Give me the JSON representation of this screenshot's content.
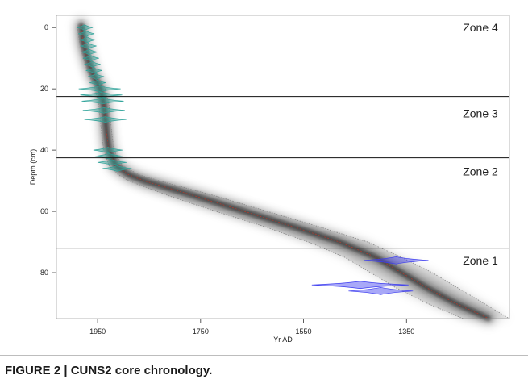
{
  "caption": "FIGURE 2 | CUNS2 core chronology.",
  "chart_data": {
    "type": "line",
    "title": "",
    "xlabel": "Yr AD",
    "ylabel": "Depth (cm)",
    "xlim": [
      2030,
      1150
    ],
    "ylim": [
      -4,
      95
    ],
    "x_reversed": true,
    "y_reversed": true,
    "x_ticks": [
      1950,
      1750,
      1550,
      1350
    ],
    "y_ticks": [
      0,
      20,
      40,
      60,
      80
    ],
    "grid": false,
    "zone_boundaries": [
      22.5,
      42.5,
      72
    ],
    "zones": [
      {
        "label": "Zone 4",
        "depth": 0
      },
      {
        "label": "Zone 3",
        "depth": 28
      },
      {
        "label": "Zone 2",
        "depth": 47
      },
      {
        "label": "Zone 1",
        "depth": 76
      }
    ],
    "age_model": {
      "depth": [
        -1,
        5,
        10,
        15,
        20,
        25,
        30,
        35,
        40,
        45,
        48,
        50,
        55,
        60,
        65,
        70,
        75,
        80,
        85,
        90,
        95
      ],
      "age": [
        1982,
        1978,
        1970,
        1960,
        1945,
        1938,
        1935,
        1932,
        1928,
        1915,
        1890,
        1860,
        1760,
        1665,
        1570,
        1480,
        1410,
        1360,
        1310,
        1255,
        1190
      ],
      "range_low": [
        1990,
        1985,
        1978,
        1968,
        1955,
        1948,
        1945,
        1942,
        1938,
        1928,
        1910,
        1890,
        1810,
        1720,
        1625,
        1540,
        1470,
        1420,
        1370,
        1310,
        1240
      ],
      "range_high": [
        1975,
        1970,
        1962,
        1952,
        1935,
        1928,
        1925,
        1922,
        1918,
        1902,
        1870,
        1830,
        1720,
        1620,
        1520,
        1425,
        1360,
        1300,
        1250,
        1200,
        1150
      ]
    },
    "pb210_dates": [
      {
        "depth": 0,
        "age": 1975
      },
      {
        "depth": 2,
        "age": 1972
      },
      {
        "depth": 4,
        "age": 1970
      },
      {
        "depth": 6,
        "age": 1968
      },
      {
        "depth": 8,
        "age": 1966
      },
      {
        "depth": 10,
        "age": 1963
      },
      {
        "depth": 12,
        "age": 1960
      },
      {
        "depth": 14,
        "age": 1957
      },
      {
        "depth": 16,
        "age": 1953
      },
      {
        "depth": 18,
        "age": 1950
      },
      {
        "depth": 20,
        "age": 1946
      },
      {
        "depth": 22,
        "age": 1943
      },
      {
        "depth": 24,
        "age": 1940
      },
      {
        "depth": 27,
        "age": 1938
      },
      {
        "depth": 30,
        "age": 1935
      },
      {
        "depth": 40,
        "age": 1930
      },
      {
        "depth": 42,
        "age": 1928
      },
      {
        "depth": 44,
        "age": 1922
      },
      {
        "depth": 46,
        "age": 1912
      }
    ],
    "c14_dates": [
      {
        "depth": 76,
        "age": 1370
      },
      {
        "depth": 84,
        "age": 1440
      },
      {
        "depth": 86,
        "age": 1400
      }
    ],
    "colors": {
      "pb210": "#2fa39a",
      "c14": "#3d3df0",
      "model": "#222222",
      "median": "#c0392b"
    }
  }
}
